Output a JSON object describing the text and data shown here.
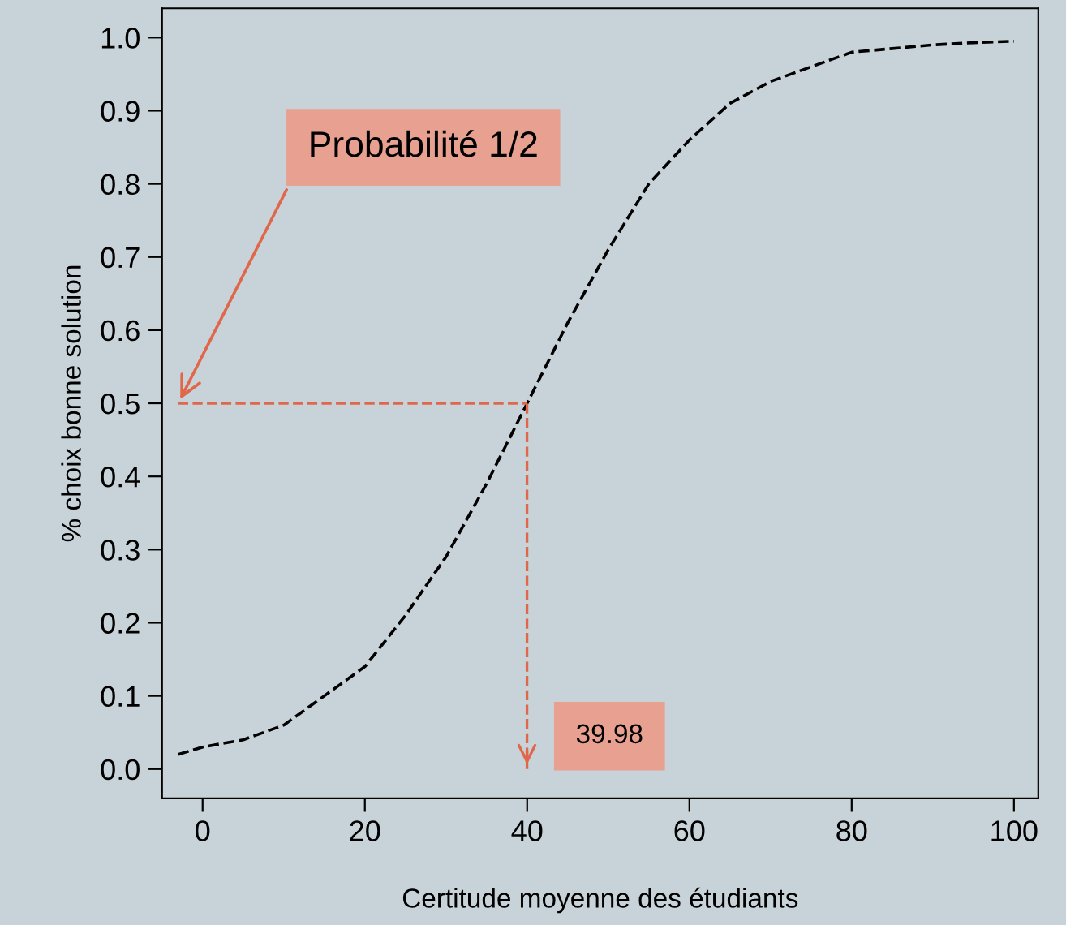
{
  "chart_data": {
    "type": "line",
    "xlabel": "Certitude moyenne des étudiants",
    "ylabel": "% choix bonne solution",
    "series": [
      {
        "color": "#000000",
        "line_style": "dashed",
        "marker": "none",
        "x": [
          -3,
          0,
          5,
          10,
          15,
          20,
          25,
          30,
          35,
          40,
          45,
          50,
          55,
          60,
          65,
          70,
          75,
          80,
          85,
          90,
          95,
          100
        ],
        "values": [
          0.02,
          0.03,
          0.04,
          0.06,
          0.1,
          0.14,
          0.21,
          0.29,
          0.39,
          0.5,
          0.61,
          0.71,
          0.8,
          0.86,
          0.91,
          0.94,
          0.96,
          0.98,
          0.985,
          0.99,
          0.993,
          0.995
        ]
      }
    ],
    "xlim": [
      -5,
      103
    ],
    "ylim": [
      -0.04,
      1.04
    ],
    "xticks": [
      0,
      20,
      40,
      60,
      80,
      100
    ],
    "yticks": [
      {
        "value": 0,
        "label": "0.0"
      },
      0.1,
      0.2,
      0.3,
      0.4,
      0.5,
      0.6,
      0.7,
      0.8,
      0.9,
      {
        "value": 1,
        "label": "1.0"
      }
    ],
    "grid": false,
    "legend": false,
    "ref_lines": [
      {
        "axis": "y",
        "value": 0.5,
        "color": "#e0674a",
        "line_style": "dashed"
      },
      {
        "axis": "x",
        "value": 39.98,
        "label": "39.98",
        "color": "#e0674a",
        "line_style": "dashed"
      }
    ],
    "annotations": [
      {
        "text": "Probabilité 1/2",
        "x": -3,
        "y": 0.5
      }
    ]
  }
}
